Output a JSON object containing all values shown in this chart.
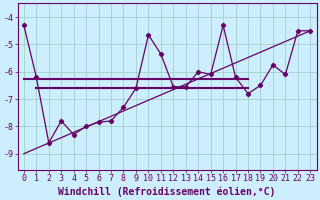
{
  "xlabel": "Windchill (Refroidissement éolien,°C)",
  "x": [
    0,
    1,
    2,
    3,
    4,
    5,
    6,
    7,
    8,
    9,
    10,
    11,
    12,
    13,
    14,
    15,
    16,
    17,
    18,
    19,
    20,
    21,
    22,
    23
  ],
  "line_main": [
    -4.3,
    -6.2,
    -8.6,
    -7.8,
    -8.3,
    -8.0,
    -7.85,
    -7.8,
    -7.3,
    -6.6,
    -4.65,
    -5.35,
    -6.55,
    -6.55,
    -6.0,
    -6.1,
    -4.3,
    -6.2,
    -6.8,
    -6.5,
    -5.75,
    -6.1,
    -4.5,
    -4.5
  ],
  "line_upper": {
    "x_start": 0,
    "x_end": 18,
    "y": -6.25
  },
  "line_lower": {
    "x_start": 1,
    "x_end": 18,
    "y": -6.6
  },
  "trend_x": [
    0,
    23
  ],
  "trend_y": [
    -9.0,
    -4.5
  ],
  "ylim": [
    -9.6,
    -3.5
  ],
  "xlim": [
    -0.5,
    23.5
  ],
  "yticks": [
    -9,
    -8,
    -7,
    -6,
    -5,
    -4
  ],
  "xticks": [
    0,
    1,
    2,
    3,
    4,
    5,
    6,
    7,
    8,
    9,
    10,
    11,
    12,
    13,
    14,
    15,
    16,
    17,
    18,
    19,
    20,
    21,
    22,
    23
  ],
  "line_color": "#660066",
  "bg_color": "#cceeff",
  "grid_color": "#99ccbb",
  "tick_label_fontsize": 6,
  "xlabel_fontsize": 7
}
